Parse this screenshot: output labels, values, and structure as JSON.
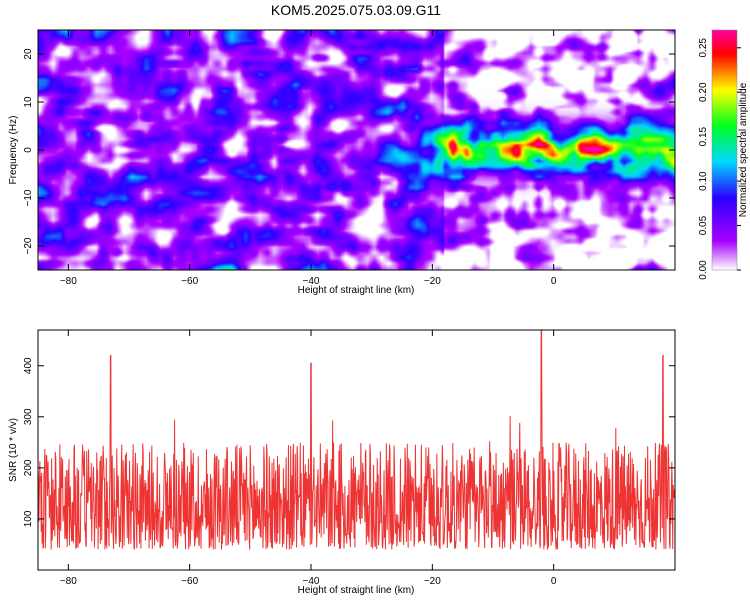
{
  "title": "KOM5.2025.075.03.09.G11",
  "chart_data": [
    {
      "type": "heatmap",
      "xlabel": "Height of straight line (km)",
      "ylabel": "Frequency (Hz)",
      "xlim": [
        -85,
        20
      ],
      "ylim": [
        -25,
        25
      ],
      "x_ticks": [
        -80,
        -60,
        -40,
        -20,
        0
      ],
      "y_ticks": [
        -20,
        -10,
        0,
        10,
        20
      ],
      "colorbar": {
        "label": "Normalized spectral amplitude",
        "range": [
          0,
          0.27
        ],
        "ticks": [
          "0.00",
          "0.05",
          "0.10",
          "0.15",
          "0.20",
          "0.25"
        ],
        "colors": [
          "#ffffff",
          "#a800ff",
          "#2a00ff",
          "#00d8ff",
          "#00ff20",
          "#ffff00",
          "#ff0000",
          "#ff00a0"
        ]
      },
      "features": {
        "background_level": 0.06,
        "strong_band": {
          "x_range": [
            -18,
            20
          ],
          "frequency_hz": 0,
          "peak_level": 0.2
        }
      }
    },
    {
      "type": "line",
      "xlabel": "Height of straight line (km)",
      "ylabel": "SNR (10 * v/v)",
      "xlim": [
        -85,
        20
      ],
      "ylim": [
        0,
        470
      ],
      "x_ticks": [
        -80,
        -60,
        -40,
        -20,
        0
      ],
      "y_ticks": [
        100,
        200,
        300,
        400
      ],
      "color": "#ee3333",
      "series_summary": {
        "typical_range": [
          40,
          250
        ],
        "peaks": [
          {
            "x": -73,
            "y": 420
          },
          {
            "x": -40,
            "y": 405
          },
          {
            "x": -2,
            "y": 468
          },
          {
            "x": 18,
            "y": 420
          }
        ]
      }
    }
  ]
}
